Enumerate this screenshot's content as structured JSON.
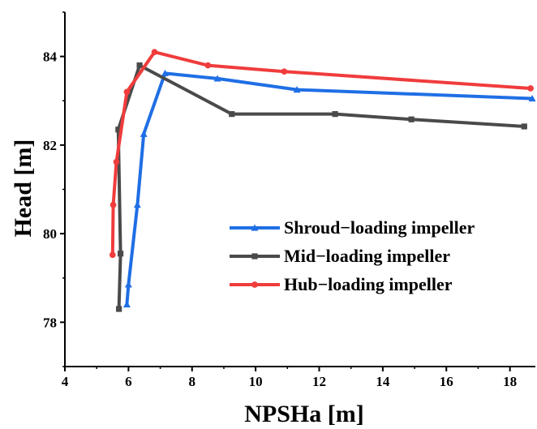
{
  "chart_data": {
    "type": "line",
    "xlabel": "NPSHa [m]",
    "ylabel": "Head [m]",
    "xlim": [
      4,
      18.8
    ],
    "ylim": [
      77,
      85
    ],
    "xticks": [
      4,
      6,
      8,
      10,
      12,
      14,
      16,
      18
    ],
    "yticks": [
      78,
      80,
      82,
      84
    ],
    "grid": false,
    "legend_position": "lower-right",
    "series": [
      {
        "name": "Shroud−loading impeller",
        "color": "#1f6fe5",
        "marker": "triangle",
        "x": [
          5.95,
          6.0,
          6.28,
          6.48,
          7.15,
          8.8,
          11.3,
          18.7
        ],
        "y": [
          78.4,
          78.85,
          80.65,
          82.25,
          83.62,
          83.5,
          83.25,
          83.05
        ]
      },
      {
        "name": "Mid−loading impeller",
        "color": "#4a4a4a",
        "marker": "square",
        "x": [
          5.7,
          5.75,
          5.68,
          6.35,
          9.25,
          12.5,
          14.9,
          18.45
        ],
        "y": [
          78.3,
          79.55,
          82.35,
          83.8,
          82.7,
          82.7,
          82.58,
          82.42
        ]
      },
      {
        "name": "Hub−loading impeller",
        "color": "#f03c3c",
        "marker": "circle",
        "x": [
          5.5,
          5.52,
          5.62,
          5.95,
          6.82,
          8.5,
          10.9,
          18.65
        ],
        "y": [
          79.52,
          80.65,
          81.62,
          83.2,
          84.1,
          83.8,
          83.66,
          83.28
        ]
      }
    ]
  }
}
